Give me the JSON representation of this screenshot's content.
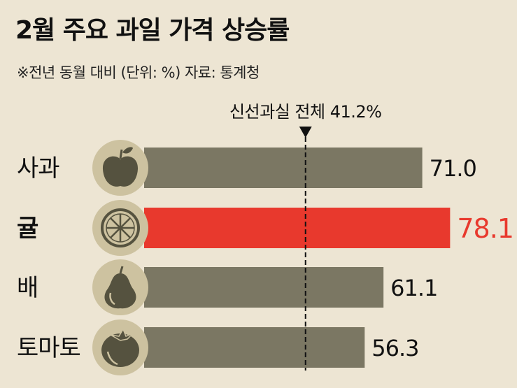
{
  "title": "2월 주요 과일 가격 상승률",
  "subtitle": "※전년 동월 대비 (단위: %) 자료: 통계청",
  "colors": {
    "background": "#ede5d3",
    "bar": "#7b7763",
    "highlight": "#e8392d",
    "icon_circle": "#cdc2a0",
    "icon_glyph": "#55523f",
    "text": "#111111"
  },
  "chart_data": {
    "type": "bar",
    "orientation": "horizontal",
    "categories": [
      "사과",
      "귤",
      "배",
      "토마토"
    ],
    "icons": [
      "apple-icon",
      "orange-slice-icon",
      "pear-icon",
      "tomato-icon"
    ],
    "values": [
      71.0,
      78.1,
      61.1,
      56.3
    ],
    "value_labels": [
      "71.0",
      "78.1",
      "61.1",
      "56.3"
    ],
    "highlight_index": 1,
    "reference": {
      "label": "신선과실 전체 41.2%",
      "value": 41.2
    },
    "xlim": [
      0,
      80
    ]
  }
}
